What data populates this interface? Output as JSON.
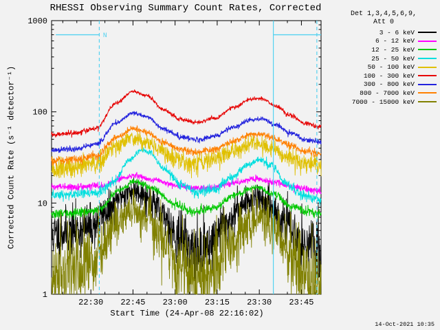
{
  "window": {
    "timestamp": "14-Oct-2021 10:35",
    "background": "#f2f2f2"
  },
  "chart_data": {
    "type": "line",
    "title": "RHESSI Observing Summary Count Rates, Corrected",
    "xlabel": "Start Time (24-Apr-08 22:16:02)",
    "ylabel": "Corrected Count Rate (s⁻¹ detector⁻¹)",
    "y_scale": "log",
    "ylim": [
      1,
      1000
    ],
    "y_ticks": [
      {
        "v": 1,
        "label": "1"
      },
      {
        "v": 10,
        "label": "10"
      },
      {
        "v": 100,
        "label": "100"
      },
      {
        "v": 1000,
        "label": "1000"
      }
    ],
    "x_range_minutes": [
      0,
      96
    ],
    "x_start": "24-Apr-08 22:16:02",
    "x_ticks": [
      {
        "t": 14,
        "label": "22:30"
      },
      {
        "t": 29,
        "label": "22:45"
      },
      {
        "t": 44,
        "label": "23:00"
      },
      {
        "t": 59,
        "label": "23:15"
      },
      {
        "t": 74,
        "label": "23:30"
      },
      {
        "t": 89,
        "label": "23:45"
      }
    ],
    "x_minor_step_minutes": 5,
    "grid": false,
    "legend": {
      "position": "outside-top-right",
      "header_line1": "Det 1,3,4,5,6,9,",
      "header_line2": "Att 0"
    },
    "series": [
      {
        "label": "3 - 6 keV",
        "color": "#000000",
        "seed": 11,
        "noise": 0.21,
        "points": [
          [
            0,
            4.5
          ],
          [
            8,
            5
          ],
          [
            14,
            5.5
          ],
          [
            20,
            8
          ],
          [
            26,
            12.5
          ],
          [
            30,
            14
          ],
          [
            35,
            11
          ],
          [
            40,
            7
          ],
          [
            46,
            4
          ],
          [
            51,
            2.8
          ],
          [
            56,
            3.5
          ],
          [
            62,
            6
          ],
          [
            68,
            9.5
          ],
          [
            73,
            12
          ],
          [
            78,
            9
          ],
          [
            83,
            6
          ],
          [
            88,
            4
          ],
          [
            92,
            3.2
          ],
          [
            96,
            3
          ]
        ]
      },
      {
        "label": "6 - 12 keV",
        "color": "#FF00FF",
        "seed": 22,
        "noise": 0.05,
        "points": [
          [
            0,
            15
          ],
          [
            10,
            15
          ],
          [
            18,
            15.5
          ],
          [
            26,
            19
          ],
          [
            30,
            20
          ],
          [
            36,
            18
          ],
          [
            44,
            15.5
          ],
          [
            51,
            14.5
          ],
          [
            58,
            15
          ],
          [
            66,
            17
          ],
          [
            73,
            18.5
          ],
          [
            79,
            17
          ],
          [
            86,
            15
          ],
          [
            92,
            14
          ],
          [
            96,
            13.5
          ]
        ]
      },
      {
        "label": "12 - 25 keV",
        "color": "#00C800",
        "seed": 33,
        "noise": 0.05,
        "points": [
          [
            0,
            7.5
          ],
          [
            10,
            7.8
          ],
          [
            17,
            8.5
          ],
          [
            24,
            14
          ],
          [
            30,
            17.5
          ],
          [
            36,
            14.5
          ],
          [
            44,
            9.5
          ],
          [
            51,
            8
          ],
          [
            58,
            9
          ],
          [
            66,
            12.5
          ],
          [
            73,
            15
          ],
          [
            79,
            12.5
          ],
          [
            86,
            9
          ],
          [
            92,
            8
          ],
          [
            96,
            7.8
          ]
        ]
      },
      {
        "label": "25 - 50 keV",
        "color": "#00DEDE",
        "seed": 44,
        "noise": 0.075,
        "points": [
          [
            0,
            12
          ],
          [
            8,
            12.5
          ],
          [
            16,
            13
          ],
          [
            22,
            17
          ],
          [
            28,
            30
          ],
          [
            32,
            38
          ],
          [
            35,
            36
          ],
          [
            40,
            24
          ],
          [
            46,
            16
          ],
          [
            52,
            13
          ],
          [
            58,
            14
          ],
          [
            64,
            19
          ],
          [
            70,
            26
          ],
          [
            74,
            30
          ],
          [
            78,
            26
          ],
          [
            84,
            16
          ],
          [
            90,
            12
          ],
          [
            96,
            11
          ]
        ]
      },
      {
        "label": "50 - 100 keV",
        "color": "#E0C000",
        "seed": 55,
        "noise": 0.22,
        "points": [
          [
            0,
            23
          ],
          [
            8,
            24
          ],
          [
            16,
            27
          ],
          [
            23,
            42
          ],
          [
            29,
            52
          ],
          [
            35,
            45
          ],
          [
            44,
            31
          ],
          [
            51,
            27
          ],
          [
            58,
            30
          ],
          [
            65,
            38
          ],
          [
            72,
            45
          ],
          [
            78,
            40
          ],
          [
            84,
            31
          ],
          [
            90,
            27
          ],
          [
            96,
            26
          ]
        ]
      },
      {
        "label": "100 - 300 keV",
        "color": "#E60000",
        "seed": 66,
        "noise": 0.08,
        "points": [
          [
            0,
            56
          ],
          [
            8,
            58
          ],
          [
            16,
            66
          ],
          [
            23,
            125
          ],
          [
            29,
            168
          ],
          [
            34,
            150
          ],
          [
            40,
            105
          ],
          [
            46,
            82
          ],
          [
            52,
            76
          ],
          [
            58,
            85
          ],
          [
            65,
            112
          ],
          [
            71,
            138
          ],
          [
            75,
            140
          ],
          [
            80,
            115
          ],
          [
            85,
            92
          ],
          [
            90,
            75
          ],
          [
            96,
            68
          ]
        ]
      },
      {
        "label": "300 - 800 keV",
        "color": "#2222DD",
        "seed": 77,
        "noise": 0.08,
        "points": [
          [
            0,
            38
          ],
          [
            8,
            39
          ],
          [
            16,
            44
          ],
          [
            23,
            75
          ],
          [
            29,
            98
          ],
          [
            34,
            88
          ],
          [
            40,
            65
          ],
          [
            46,
            53
          ],
          [
            52,
            49
          ],
          [
            58,
            54
          ],
          [
            65,
            68
          ],
          [
            71,
            82
          ],
          [
            75,
            84
          ],
          [
            80,
            71
          ],
          [
            85,
            59
          ],
          [
            90,
            50
          ],
          [
            96,
            46
          ]
        ]
      },
      {
        "label": "800 - 7000 keV",
        "color": "#FF8000",
        "seed": 88,
        "noise": 0.09,
        "points": [
          [
            0,
            29
          ],
          [
            8,
            30
          ],
          [
            16,
            33
          ],
          [
            23,
            52
          ],
          [
            29,
            66
          ],
          [
            34,
            59
          ],
          [
            40,
            46
          ],
          [
            46,
            39
          ],
          [
            52,
            36
          ],
          [
            58,
            39
          ],
          [
            65,
            48
          ],
          [
            71,
            56
          ],
          [
            75,
            57
          ],
          [
            80,
            50
          ],
          [
            85,
            43
          ],
          [
            90,
            37
          ],
          [
            96,
            35
          ]
        ]
      },
      {
        "label": "7000 - 15000 keV",
        "color": "#808000",
        "seed": 99,
        "noise": 0.22,
        "points": [
          [
            0,
            1.6
          ],
          [
            8,
            1.9
          ],
          [
            15,
            2.4
          ],
          [
            22,
            5.5
          ],
          [
            29,
            8.5
          ],
          [
            34,
            7
          ],
          [
            40,
            3.8
          ],
          [
            46,
            2
          ],
          [
            52,
            1.3
          ],
          [
            58,
            1.9
          ],
          [
            64,
            3.8
          ],
          [
            70,
            6
          ],
          [
            74,
            7
          ],
          [
            79,
            5.5
          ],
          [
            84,
            3
          ],
          [
            89,
            1.7
          ],
          [
            93,
            1.3
          ],
          [
            96,
            1.3
          ]
        ]
      }
    ],
    "flags": {
      "label": "N",
      "label_t_minutes": 18.3,
      "color": "#54D2F0",
      "night_level": 700,
      "night_segments_minutes": [
        [
          1.5,
          17
        ],
        [
          79,
          96
        ]
      ],
      "dashed_vlines_minutes": [
        17,
        94.5
      ],
      "solid_vlines_minutes": [
        79
      ]
    }
  }
}
